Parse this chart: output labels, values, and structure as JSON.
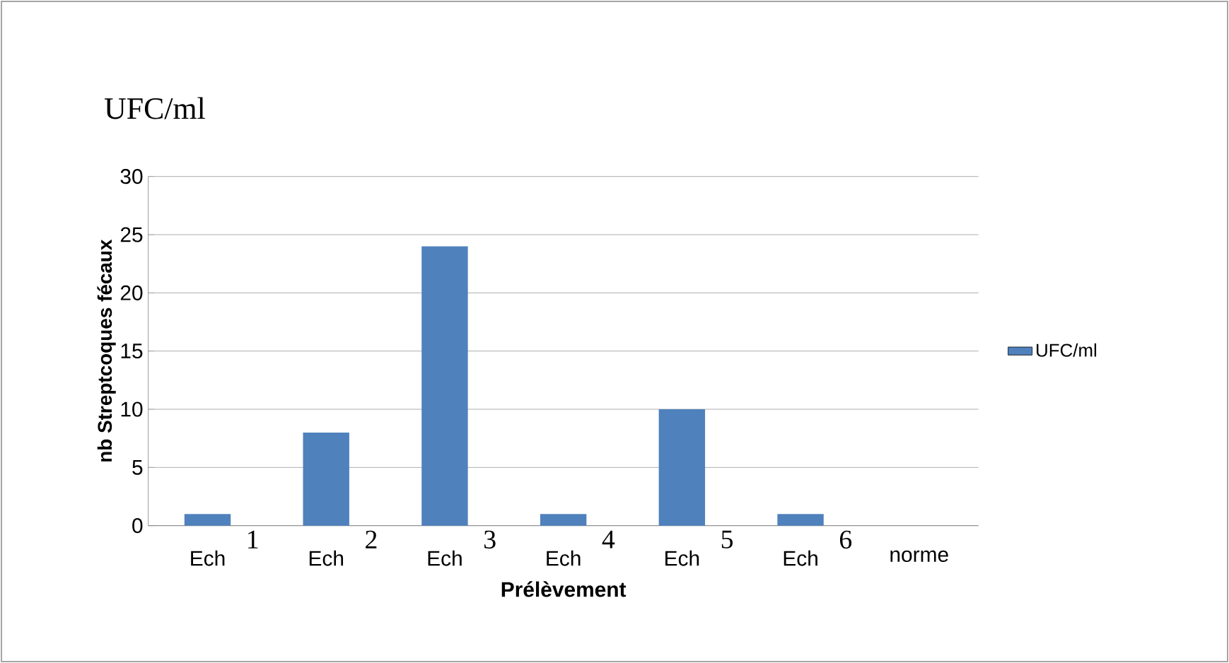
{
  "chart_data": {
    "type": "bar",
    "title": "UFC/ml",
    "xlabel": "Prélèvement",
    "ylabel": "nb Streptcoques fécaux",
    "categories": [
      "Ech",
      "Ech",
      "Ech",
      "Ech",
      "Ech",
      "Ech",
      "norme"
    ],
    "series": [
      {
        "name": "UFC/ml",
        "color": "#4f81bd",
        "values": [
          1,
          8,
          24,
          1,
          10,
          1,
          null
        ]
      }
    ],
    "annotations": [
      "1",
      "2",
      "3",
      "4",
      "5",
      "6"
    ],
    "ylim": [
      0,
      30
    ],
    "yticks": [
      0,
      5,
      10,
      15,
      20,
      25,
      30
    ],
    "grid": "y",
    "legend": "right"
  }
}
